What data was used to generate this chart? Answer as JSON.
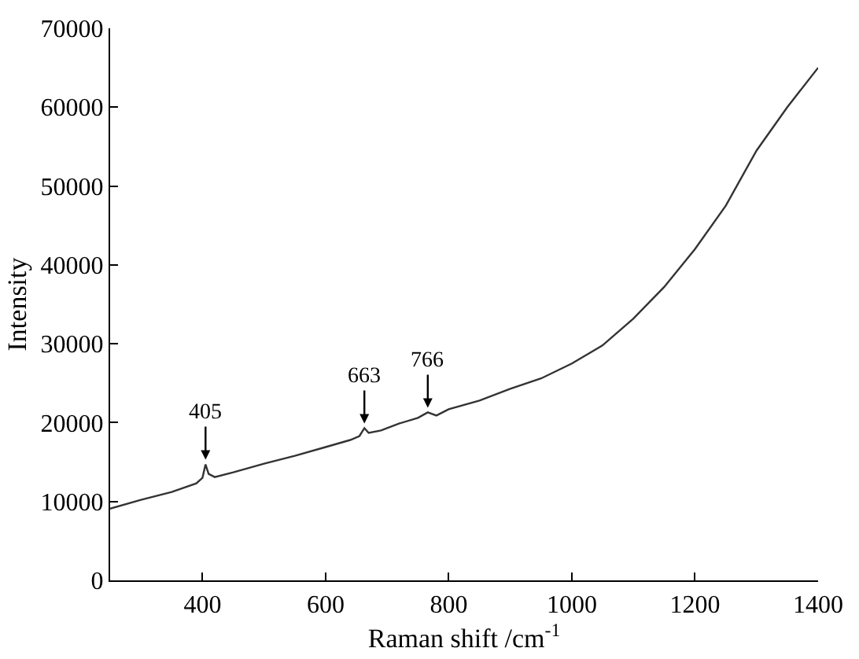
{
  "chart_data": {
    "type": "line",
    "xlabel": "Raman shift /cm$^{-1}$",
    "ylabel": "Intensity",
    "xlim": [
      250,
      1400
    ],
    "xticks": [
      400,
      600,
      800,
      1000,
      1200,
      1400
    ],
    "ylim": [
      0,
      70000
    ],
    "yticks": [
      0,
      10000,
      20000,
      30000,
      40000,
      50000,
      60000,
      70000
    ],
    "series": [
      {
        "color": "#333333",
        "x": [
          250,
          300,
          350,
          390,
          400,
          405,
          410,
          420,
          450,
          500,
          550,
          600,
          640,
          655,
          663,
          670,
          690,
          720,
          750,
          766,
          780,
          800,
          850,
          900,
          950,
          1000,
          1050,
          1100,
          1150,
          1200,
          1250,
          1300,
          1350,
          1400
        ],
        "values": [
          9100,
          10200,
          11200,
          12300,
          13000,
          14700,
          13500,
          13100,
          13700,
          14800,
          15800,
          16900,
          17800,
          18300,
          19300,
          18700,
          19000,
          19900,
          20600,
          21300,
          20900,
          21700,
          22800,
          24300,
          25600,
          27500,
          29800,
          33200,
          37200,
          42000,
          47500,
          54500,
          60000,
          65000
        ]
      }
    ],
    "annotations": [
      {
        "text": "405",
        "x": 405,
        "y": 14700
      },
      {
        "text": "663",
        "x": 663,
        "y": 19300
      },
      {
        "text": "766",
        "x": 766,
        "y": 21300
      }
    ]
  }
}
